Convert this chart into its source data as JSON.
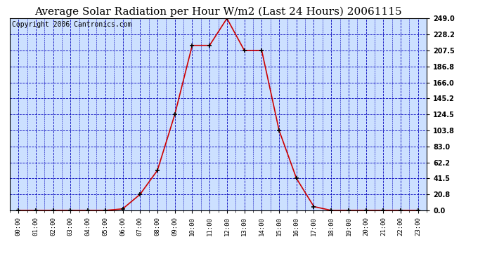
{
  "title": "Average Solar Radiation per Hour W/m2 (Last 24 Hours) 20061115",
  "copyright": "Copyright 2006 Cantronics.com",
  "hours": [
    "00:00",
    "01:00",
    "02:00",
    "03:00",
    "04:00",
    "05:00",
    "06:00",
    "07:00",
    "08:00",
    "09:00",
    "10:00",
    "11:00",
    "12:00",
    "13:00",
    "14:00",
    "15:00",
    "16:00",
    "17:00",
    "18:00",
    "19:00",
    "20:00",
    "21:00",
    "22:00",
    "23:00"
  ],
  "values": [
    0.0,
    0.0,
    0.0,
    0.0,
    0.0,
    0.0,
    2.0,
    20.8,
    52.0,
    124.5,
    214.0,
    214.0,
    249.0,
    207.5,
    207.5,
    103.8,
    41.5,
    5.0,
    0.0,
    0.0,
    0.0,
    0.0,
    0.0,
    0.0
  ],
  "yticks": [
    0.0,
    20.8,
    41.5,
    62.2,
    83.0,
    103.8,
    124.5,
    145.2,
    166.0,
    186.8,
    207.5,
    228.2,
    249.0
  ],
  "ymax": 249.0,
  "line_color": "#cc0000",
  "marker_color": "#000000",
  "bg_color": "#cce0ff",
  "plot_bg": "#ffffff",
  "grid_color": "#0000bb",
  "title_color": "#000000",
  "title_fontsize": 11,
  "copyright_fontsize": 7
}
